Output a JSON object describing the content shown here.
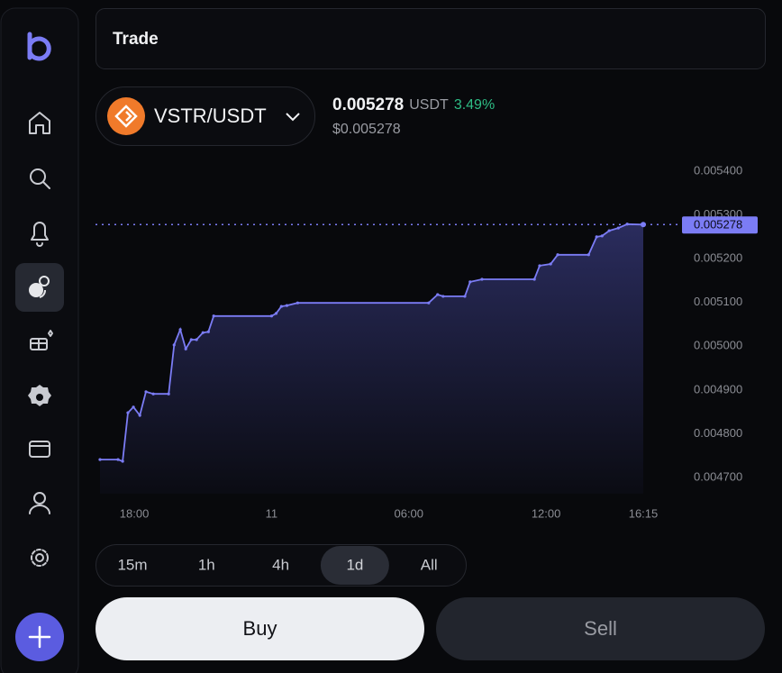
{
  "header": {
    "title": "Trade"
  },
  "pair": {
    "name": "VSTR/USDT",
    "price": "0.005278",
    "quote": "USDT",
    "change": "3.49%",
    "usd_price": "$0.005278"
  },
  "chart_data": {
    "type": "line",
    "color": "#7b7cf5",
    "x": [
      -7.5,
      -6.71,
      -6.51,
      -6.28,
      -6.04,
      -5.76,
      -5.49,
      -5.17,
      -4.5,
      -4.26,
      -3.99,
      -3.75,
      -3.51,
      -3.28,
      -3.0,
      -2.76,
      -2.53,
      0,
      0.2,
      0.43,
      0.67,
      1.14,
      6.87,
      7.26,
      7.5,
      8.45,
      8.68,
      9.2,
      11.49,
      11.72,
      12.2,
      12.51,
      13.86,
      14.21,
      14.45,
      14.76,
      15.16,
      15.55,
      16.25
    ],
    "values": [
      0.004741,
      0.004741,
      0.004737,
      0.004848,
      0.004861,
      0.004842,
      0.004896,
      0.004891,
      0.004891,
      0.005003,
      0.005038,
      0.004994,
      0.005015,
      0.005015,
      0.005031,
      0.005033,
      0.005069,
      0.005069,
      0.005075,
      0.005091,
      0.005093,
      0.005099,
      0.005099,
      0.005118,
      0.005114,
      0.005114,
      0.005147,
      0.005153,
      0.005153,
      0.005184,
      0.005188,
      0.005209,
      0.005209,
      0.00525,
      0.005252,
      0.005264,
      0.00527,
      0.005279,
      0.005278
    ],
    "xlim": [
      -7.5,
      16.25
    ],
    "ylim": [
      0.0047,
      0.0054
    ],
    "xticks": [
      {
        "value": -6,
        "label": "18:00"
      },
      {
        "value": 0,
        "label": "11"
      },
      {
        "value": 6,
        "label": "06:00"
      },
      {
        "value": 12,
        "label": "12:00"
      },
      {
        "value": 16.25,
        "label": "16:15"
      }
    ],
    "yticks": [
      {
        "value": 0.0047,
        "label": "0.004700"
      },
      {
        "value": 0.0048,
        "label": "0.004800"
      },
      {
        "value": 0.0049,
        "label": "0.004900"
      },
      {
        "value": 0.005,
        "label": "0.005000"
      },
      {
        "value": 0.0051,
        "label": "0.005100"
      },
      {
        "value": 0.0052,
        "label": "0.005200"
      },
      {
        "value": 0.0053,
        "label": "0.005300"
      },
      {
        "value": 0.0054,
        "label": "0.005400"
      }
    ],
    "price_line": {
      "value": 0.005278,
      "label": "0.005278"
    }
  },
  "timeframes": {
    "options": [
      "15m",
      "1h",
      "4h",
      "1d",
      "All"
    ],
    "active": 3
  },
  "actions": {
    "buy": "Buy",
    "sell": "Sell"
  }
}
